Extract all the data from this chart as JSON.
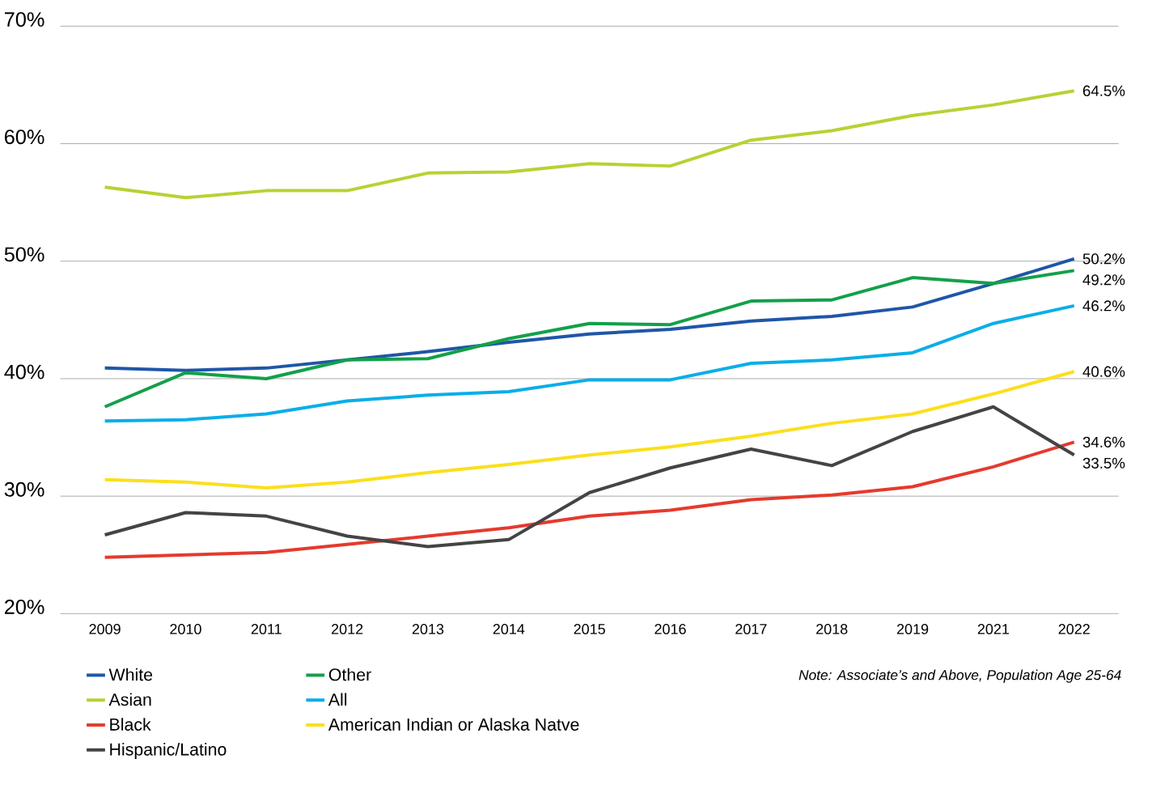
{
  "chart_data": {
    "type": "line",
    "categories": [
      "2009",
      "2010",
      "2011",
      "2012",
      "2013",
      "2014",
      "2015",
      "2016",
      "2017",
      "2018",
      "2019",
      "2021",
      "2022"
    ],
    "series": [
      {
        "name": "White",
        "color": "#1f56a8",
        "values": [
          40.9,
          40.7,
          40.9,
          41.6,
          42.3,
          43.1,
          43.8,
          44.2,
          44.9,
          45.3,
          46.1,
          48.1,
          50.2
        ],
        "value_labels": [
          null,
          null,
          null,
          null,
          null,
          null,
          null,
          null,
          null,
          null,
          null,
          null,
          "50.2%"
        ]
      },
      {
        "name": "Other",
        "color": "#13a04a",
        "values": [
          37.6,
          40.5,
          40.0,
          41.6,
          41.7,
          43.4,
          44.7,
          44.6,
          46.6,
          46.7,
          48.6,
          48.1,
          49.2
        ],
        "value_labels": [
          null,
          null,
          null,
          null,
          null,
          null,
          null,
          null,
          null,
          null,
          null,
          null,
          "49.2%"
        ]
      },
      {
        "name": "Asian",
        "color": "#b5d334",
        "values": [
          56.3,
          55.4,
          56.0,
          56.0,
          57.5,
          57.6,
          58.3,
          58.1,
          60.3,
          61.1,
          62.4,
          63.3,
          64.5
        ],
        "value_labels": [
          null,
          null,
          null,
          null,
          null,
          null,
          null,
          null,
          null,
          null,
          null,
          null,
          "64.5%"
        ]
      },
      {
        "name": "All",
        "color": "#0aaee8",
        "values": [
          36.4,
          36.5,
          37.0,
          38.1,
          38.6,
          38.9,
          39.9,
          39.9,
          41.3,
          41.6,
          42.2,
          44.7,
          46.2
        ],
        "value_labels": [
          null,
          null,
          null,
          null,
          null,
          null,
          null,
          null,
          null,
          null,
          null,
          null,
          "46.2%"
        ]
      },
      {
        "name": "Black",
        "color": "#e53a2e",
        "values": [
          24.8,
          25.0,
          25.2,
          25.9,
          26.6,
          27.3,
          28.3,
          28.8,
          29.7,
          30.1,
          30.8,
          32.5,
          34.6
        ],
        "value_labels": [
          null,
          null,
          null,
          null,
          null,
          null,
          null,
          null,
          null,
          null,
          null,
          null,
          "34.6%"
        ]
      },
      {
        "name": "American Indian or Alaska Natve",
        "color": "#fbdf1c",
        "values": [
          31.4,
          31.2,
          30.7,
          31.2,
          32.0,
          32.7,
          33.5,
          34.2,
          35.1,
          36.2,
          37.0,
          38.7,
          40.6
        ],
        "value_labels": [
          null,
          null,
          null,
          null,
          null,
          null,
          null,
          null,
          null,
          null,
          null,
          null,
          "40.6%"
        ]
      },
      {
        "name": "Hispanic/Latino",
        "color": "#444444",
        "values": [
          26.7,
          28.6,
          28.3,
          26.6,
          25.7,
          26.3,
          30.3,
          32.4,
          34.0,
          32.6,
          35.5,
          37.6,
          33.5
        ],
        "value_labels": [
          null,
          null,
          null,
          null,
          null,
          null,
          null,
          null,
          null,
          null,
          null,
          null,
          "33.5%"
        ]
      }
    ],
    "ylim": [
      20,
      70
    ],
    "yticks": [
      {
        "value": 20,
        "label": "20%"
      },
      {
        "value": 30,
        "label": "30%"
      },
      {
        "value": 40,
        "label": "40%"
      },
      {
        "value": 50,
        "label": "50%"
      },
      {
        "value": 60,
        "label": "60%"
      },
      {
        "value": 70,
        "label": "70%"
      }
    ],
    "grid": "y",
    "legend": "bottom left",
    "marker": "none",
    "line_style": "solid",
    "annotations": [
      "*Note: Associate’s and Above, Population Age 25-64*"
    ]
  }
}
